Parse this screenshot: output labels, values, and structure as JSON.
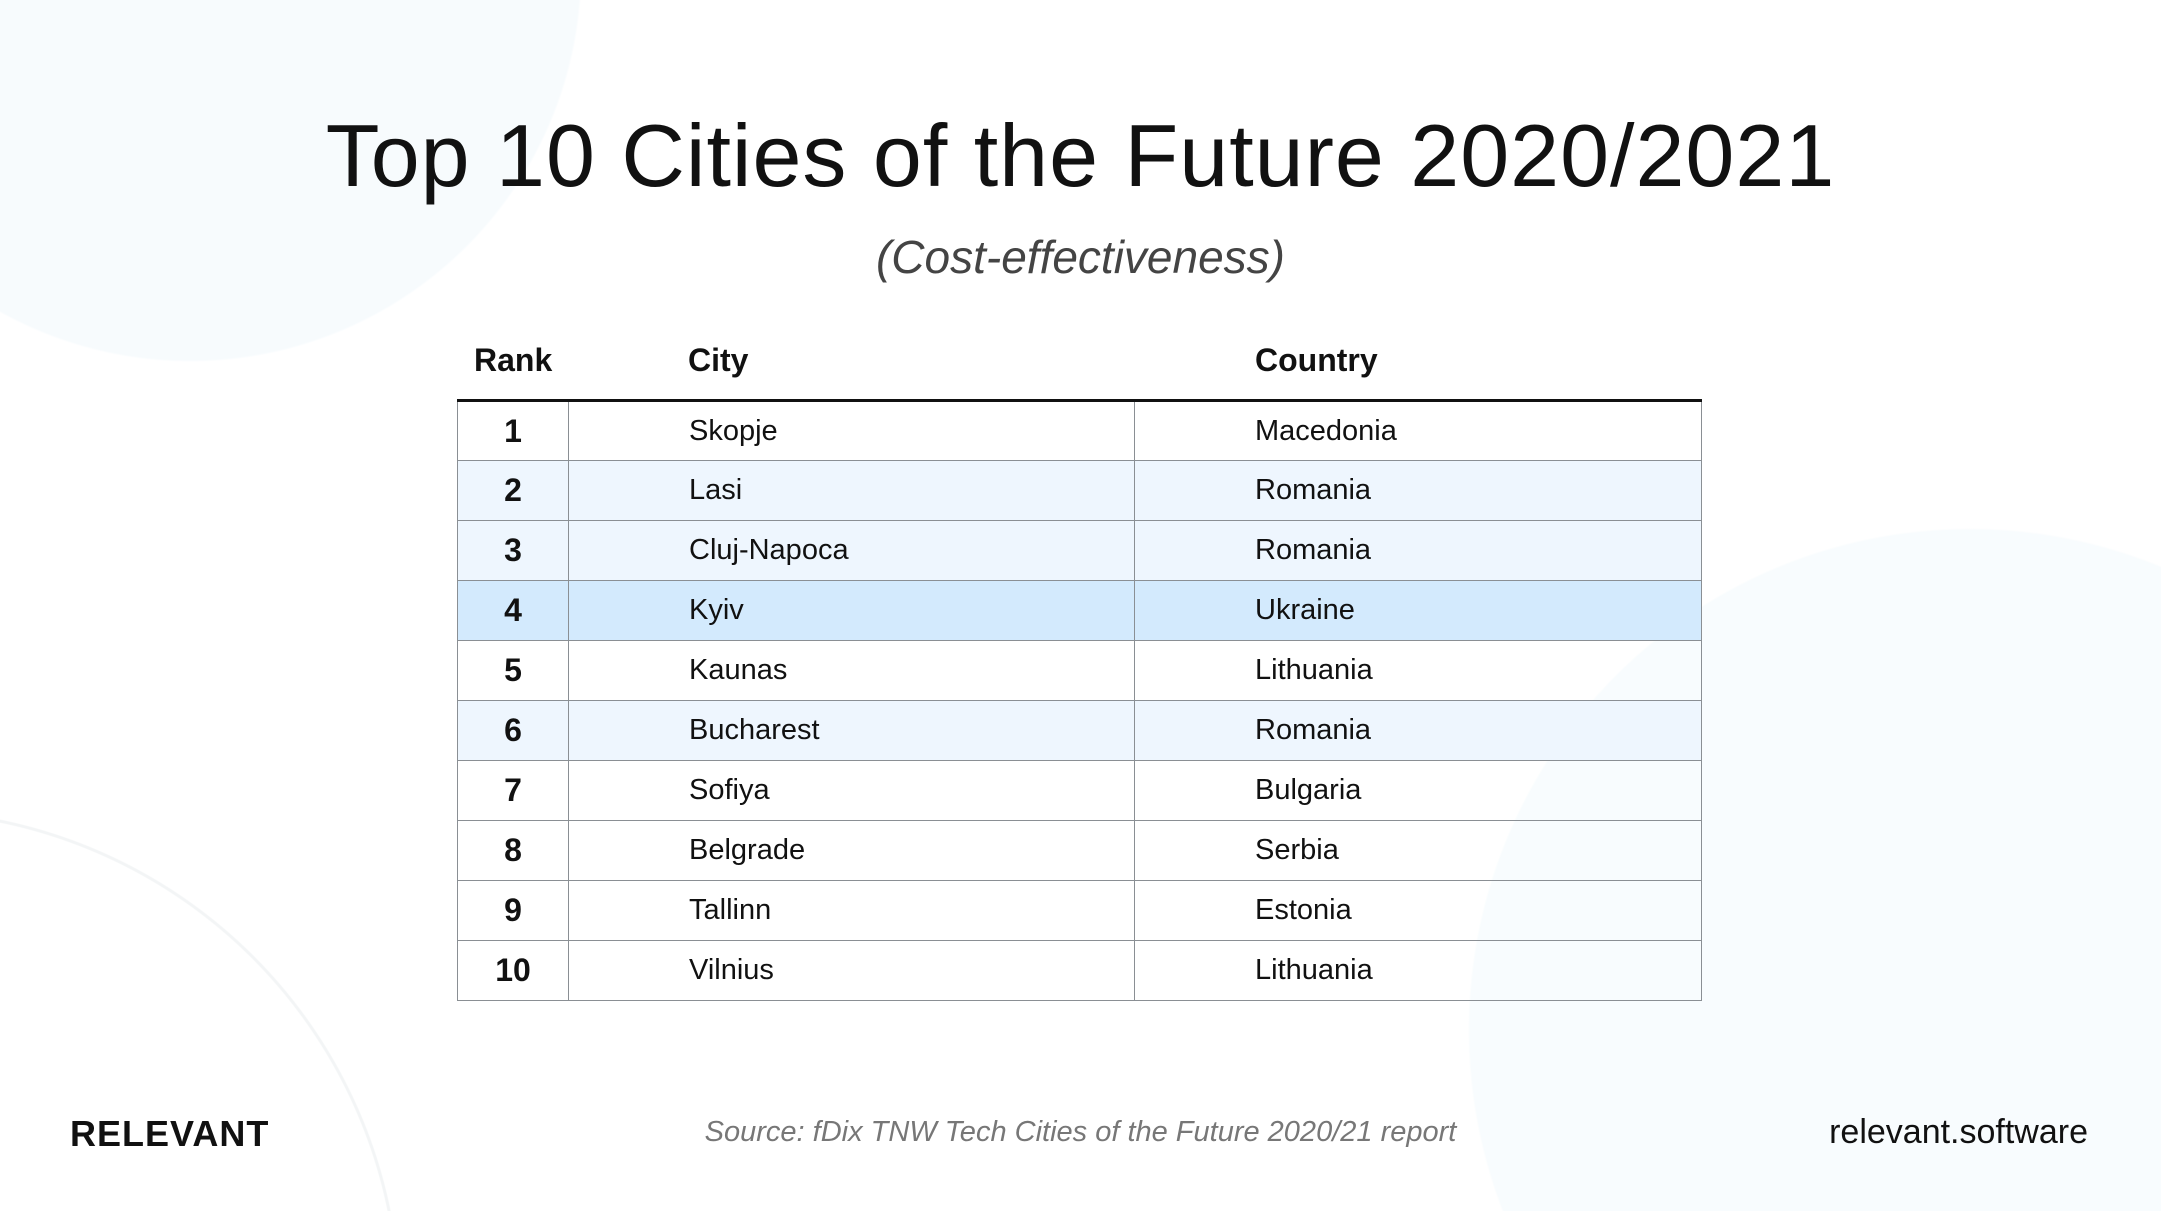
{
  "title": "Top 10 Cities of the Future 2020/2021",
  "subtitle": "(Cost-effectiveness)",
  "table": {
    "headers": [
      "Rank",
      "City",
      "Country"
    ],
    "rows": [
      {
        "rank": "1",
        "city": "Skopje",
        "country": "Macedonia",
        "style": "plain"
      },
      {
        "rank": "2",
        "city": "Lasi",
        "country": "Romania",
        "style": "light"
      },
      {
        "rank": "3",
        "city": "Cluj-Napoca",
        "country": "Romania",
        "style": "light"
      },
      {
        "rank": "4",
        "city": "Kyiv",
        "country": "Ukraine",
        "style": "hl"
      },
      {
        "rank": "5",
        "city": "Kaunas",
        "country": "Lithuania",
        "style": "plain"
      },
      {
        "rank": "6",
        "city": "Bucharest",
        "country": "Romania",
        "style": "light"
      },
      {
        "rank": "7",
        "city": "Sofiya",
        "country": "Bulgaria",
        "style": "plain"
      },
      {
        "rank": "8",
        "city": "Belgrade",
        "country": "Serbia",
        "style": "plain"
      },
      {
        "rank": "9",
        "city": "Tallinn",
        "country": "Estonia",
        "style": "plain"
      },
      {
        "rank": "10",
        "city": "Vilnius",
        "country": "Lithuania",
        "style": "plain"
      }
    ],
    "colors": {
      "light": "#eef6fe",
      "highlight": "#d3eafd"
    }
  },
  "footer": {
    "logo": "RELEVANT",
    "source": "Source: fDix TNW Tech Cities of the Future 2020/21 report",
    "site": "relevant.software"
  }
}
